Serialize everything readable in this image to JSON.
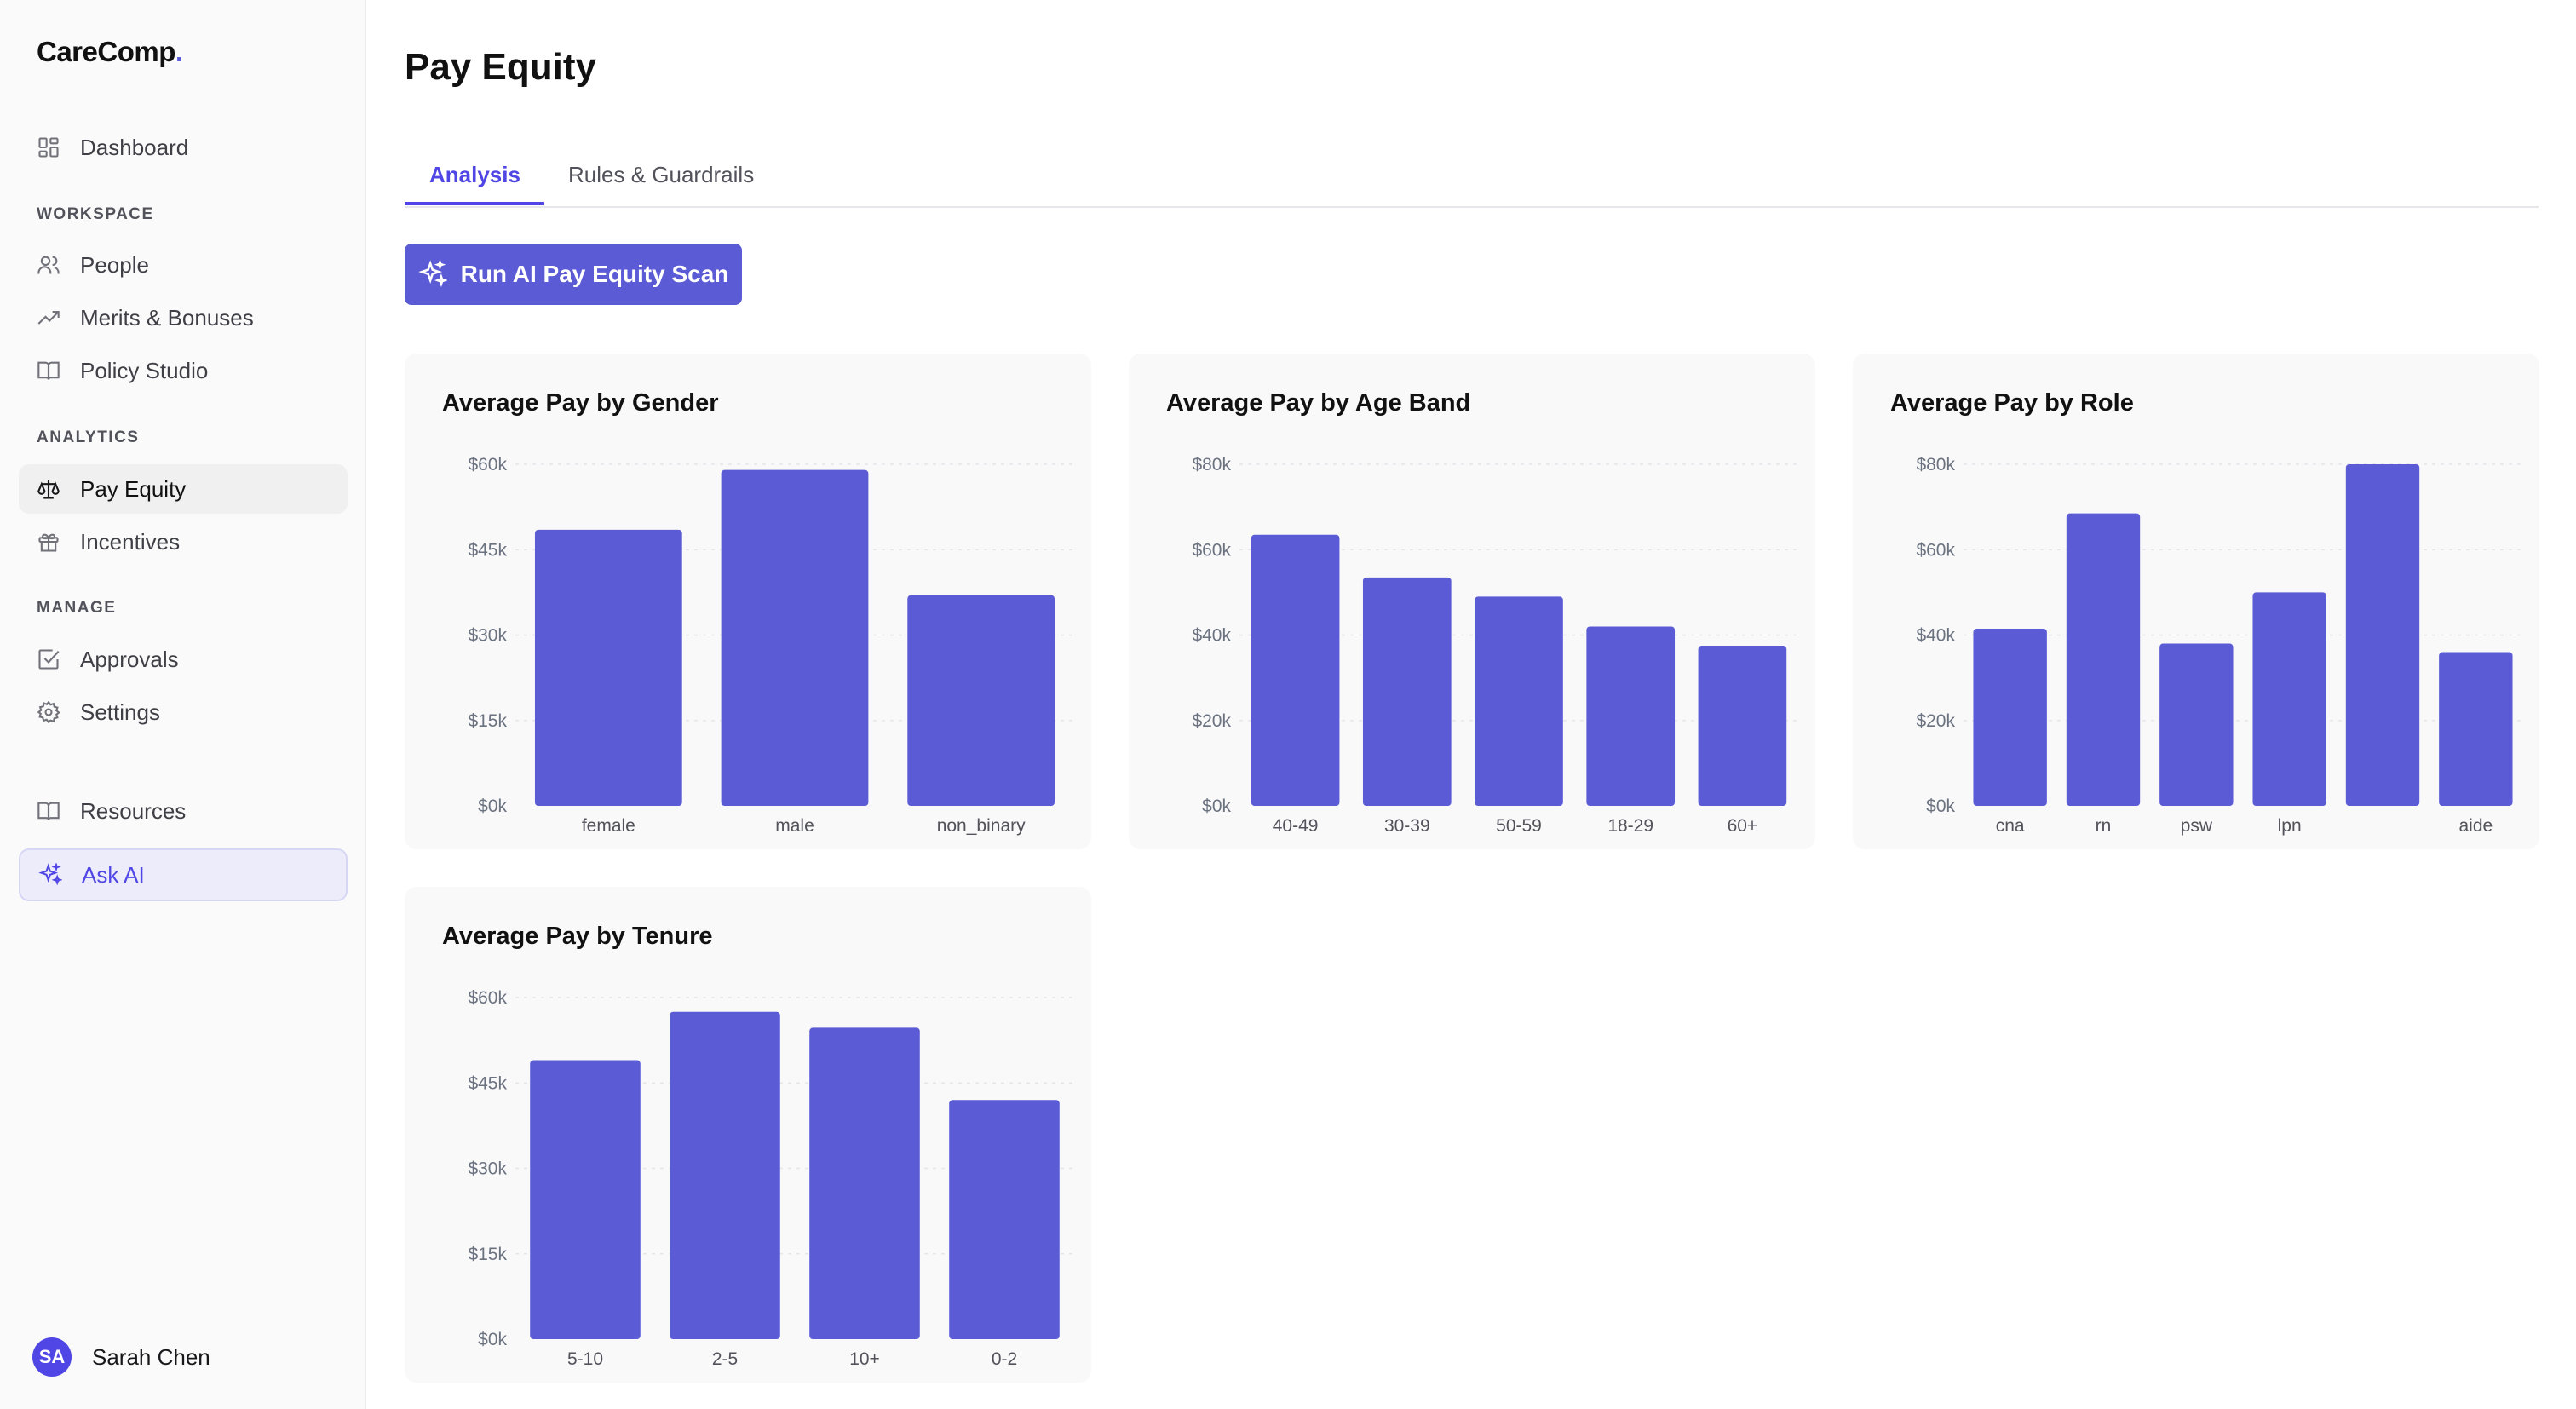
{
  "app": {
    "brand": "CareComp",
    "brand_dot": "."
  },
  "sidebar": {
    "dashboard": {
      "label": "Dashboard",
      "icon": "grid-icon"
    },
    "sections": [
      {
        "label": "WORKSPACE",
        "items": [
          {
            "label": "People",
            "icon": "users-icon"
          },
          {
            "label": "Merits & Bonuses",
            "icon": "trending-up-icon"
          },
          {
            "label": "Policy Studio",
            "icon": "book-icon"
          }
        ]
      },
      {
        "label": "ANALYTICS",
        "items": [
          {
            "label": "Pay Equity",
            "icon": "scale-icon",
            "active": true
          },
          {
            "label": "Incentives",
            "icon": "gift-icon"
          }
        ]
      },
      {
        "label": "MANAGE",
        "items": [
          {
            "label": "Approvals",
            "icon": "check-square-icon"
          },
          {
            "label": "Settings",
            "icon": "gear-icon"
          }
        ]
      }
    ],
    "resources": {
      "label": "Resources",
      "icon": "book-icon"
    },
    "ask_ai": {
      "label": "Ask AI",
      "icon": "sparkles-icon"
    },
    "user": {
      "initials": "SA",
      "name": "Sarah Chen"
    }
  },
  "page": {
    "title": "Pay Equity",
    "tabs": [
      {
        "label": "Analysis",
        "active": true
      },
      {
        "label": "Rules & Guardrails",
        "active": false
      }
    ],
    "run_button": "Run AI Pay Equity Scan"
  },
  "colors": {
    "accent": "#5b5bd6",
    "bar": "#5b5bd6"
  },
  "chart_data": [
    {
      "type": "bar",
      "title": "Average Pay by Gender",
      "categories": [
        "female",
        "male",
        "non_binary"
      ],
      "values": [
        48500,
        59000,
        37000
      ],
      "yticks": [
        "$0k",
        "$15k",
        "$30k",
        "$45k",
        "$60k"
      ],
      "ylim": [
        0,
        60000
      ],
      "grid": true
    },
    {
      "type": "bar",
      "title": "Average Pay by Age Band",
      "categories": [
        "40-49",
        "30-39",
        "50-59",
        "18-29",
        "60+"
      ],
      "values": [
        63500,
        53500,
        49000,
        42000,
        37500
      ],
      "yticks": [
        "$0k",
        "$20k",
        "$40k",
        "$60k",
        "$80k"
      ],
      "ylim": [
        0,
        80000
      ],
      "grid": true
    },
    {
      "type": "bar",
      "title": "Average Pay by Role",
      "categories": [
        "cna",
        "rn",
        "psw",
        "lpn",
        "",
        "aide"
      ],
      "values": [
        41500,
        68500,
        38000,
        50000,
        80000,
        36000
      ],
      "yticks": [
        "$0k",
        "$20k",
        "$40k",
        "$60k",
        "$80k"
      ],
      "ylim": [
        0,
        80000
      ],
      "grid": true
    },
    {
      "type": "bar",
      "title": "Average Pay by Tenure",
      "categories": [
        "5-10",
        "2-5",
        "10+",
        "0-2"
      ],
      "values": [
        49000,
        57500,
        54700,
        42000
      ],
      "yticks": [
        "$0k",
        "$15k",
        "$30k",
        "$45k",
        "$60k"
      ],
      "ylim": [
        0,
        60000
      ],
      "grid": true
    }
  ]
}
